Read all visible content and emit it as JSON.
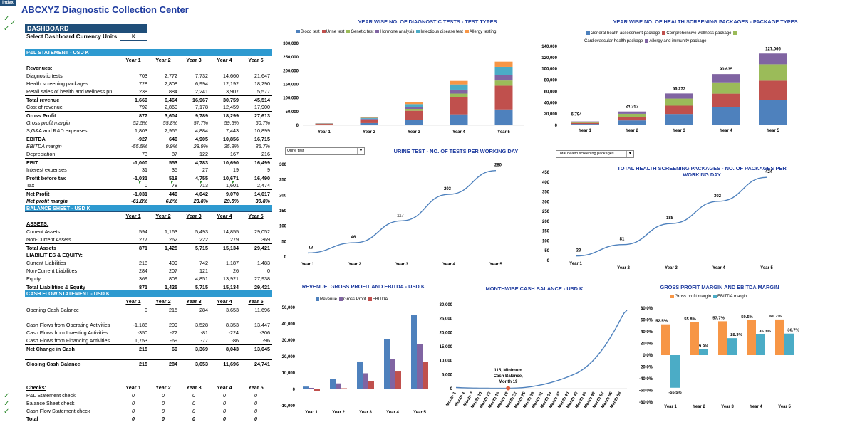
{
  "index_label": "Index",
  "title": "ABCXYZ Diagnostic Collection Center",
  "dashboard": {
    "header": "DASHBOARD",
    "currency_label": "Select Dashboard Currency Units",
    "currency_value": "K"
  },
  "years": [
    "Year 1",
    "Year 2",
    "Year 3",
    "Year 4",
    "Year 5"
  ],
  "pl": {
    "header": "P&L STATEMENT - USD K",
    "rows": [
      {
        "label": "Revenues:",
        "values": [
          "",
          "",
          "",
          "",
          ""
        ],
        "style": "b"
      },
      {
        "label": "Diagnostic tests",
        "values": [
          "703",
          "2,772",
          "7,732",
          "14,660",
          "21,647"
        ]
      },
      {
        "label": "Health screening packages",
        "values": [
          "728",
          "2,808",
          "6,994",
          "12,192",
          "18,290"
        ]
      },
      {
        "label": "Retail sales of health and wellness proc",
        "values": [
          "238",
          "884",
          "2,241",
          "3,907",
          "5,577"
        ]
      },
      {
        "label": "Total revenue",
        "values": [
          "1,669",
          "6,464",
          "16,967",
          "30,759",
          "45,514"
        ],
        "style": "b"
      },
      {
        "label": "Cost of revenue",
        "values": [
          "792",
          "2,860",
          "7,178",
          "12,459",
          "17,900"
        ]
      },
      {
        "label": "Gross Profit",
        "values": [
          "877",
          "3,604",
          "9,789",
          "18,299",
          "27,613"
        ],
        "style": "b"
      },
      {
        "label": "Gross profit margin",
        "values": [
          "52.5%",
          "55.8%",
          "57.7%",
          "59.5%",
          "60.7%"
        ],
        "style": "i"
      },
      {
        "label": "S,G&A and R&D expenses",
        "values": [
          "1,803",
          "2,965",
          "4,884",
          "7,443",
          "10,899"
        ]
      },
      {
        "label": "EBITDA",
        "values": [
          "-927",
          "640",
          "4,905",
          "10,856",
          "16,715"
        ],
        "style": "b"
      },
      {
        "label": "EBITDA margin",
        "values": [
          "-55.5%",
          "9.9%",
          "28.9%",
          "35.3%",
          "36.7%"
        ],
        "style": "i"
      },
      {
        "label": "Depreciation",
        "values": [
          "73",
          "87",
          "122",
          "167",
          "216"
        ]
      },
      {
        "label": "EBIT",
        "values": [
          "-1,000",
          "553",
          "4,783",
          "10,690",
          "16,499"
        ],
        "style": "b"
      },
      {
        "label": "Interest expenses",
        "values": [
          "31",
          "35",
          "27",
          "19",
          "9"
        ]
      },
      {
        "label": "Profit before tax",
        "values": [
          "-1,031",
          "518",
          "4,755",
          "10,671",
          "16,490"
        ],
        "style": "b"
      },
      {
        "label": "Tax",
        "values": [
          "0",
          "78",
          "713",
          "1,601",
          "2,474"
        ]
      },
      {
        "label": "Net Profit",
        "values": [
          "-1,031",
          "440",
          "4,042",
          "9,070",
          "14,017"
        ],
        "style": "b"
      },
      {
        "label": "Net profit margin",
        "values": [
          "-61.8%",
          "6.8%",
          "23.8%",
          "29.5%",
          "30.8%"
        ],
        "style": "bi"
      }
    ]
  },
  "bs": {
    "header": "BALANCE SHEET - USD K",
    "rows": [
      {
        "label": "ASSETS:",
        "values": [
          "",
          "",
          "",
          "",
          ""
        ],
        "style": "bu"
      },
      {
        "label": "Current Assets",
        "values": [
          "594",
          "1,163",
          "5,493",
          "14,855",
          "29,052"
        ]
      },
      {
        "label": "Non-Current Assets",
        "values": [
          "277",
          "262",
          "222",
          "279",
          "369"
        ]
      },
      {
        "label": "Total Assets",
        "values": [
          "871",
          "1,425",
          "5,715",
          "15,134",
          "29,421"
        ],
        "style": "b"
      },
      {
        "label": "LIABILITIES & EQUITY:",
        "values": [
          "",
          "",
          "",
          "",
          ""
        ],
        "style": "bu"
      },
      {
        "label": "Current Liabilities",
        "values": [
          "218",
          "409",
          "742",
          "1,187",
          "1,483"
        ]
      },
      {
        "label": "Non-Current Liabilities",
        "values": [
          "284",
          "207",
          "121",
          "26",
          "0"
        ]
      },
      {
        "label": "Equity",
        "values": [
          "369",
          "809",
          "4,851",
          "13,921",
          "27,938"
        ]
      },
      {
        "label": "Total Liabilities & Equity",
        "values": [
          "871",
          "1,425",
          "5,715",
          "15,134",
          "29,421"
        ],
        "style": "b"
      }
    ]
  },
  "cf": {
    "header": "CASH FLOW STATEMENT - USD K",
    "opening": {
      "label": "Opening Cash Balance",
      "values": [
        "0",
        "215",
        "284",
        "3,653",
        "11,696"
      ]
    },
    "rows": [
      {
        "label": "Cash Flows from Operating Activities",
        "values": [
          "-1,188",
          "209",
          "3,528",
          "8,353",
          "13,447"
        ]
      },
      {
        "label": "Cash Flows from Investing Activities",
        "values": [
          "-350",
          "-72",
          "-81",
          "-224",
          "-306"
        ]
      },
      {
        "label": "Cash Flows from Financing Activities",
        "values": [
          "1,753",
          "-69",
          "-77",
          "-86",
          "-96"
        ]
      },
      {
        "label": "Net Change in Cash",
        "values": [
          "215",
          "69",
          "3,369",
          "8,043",
          "13,045"
        ],
        "style": "b"
      }
    ],
    "closing": {
      "label": "Closing Cash Balance",
      "values": [
        "215",
        "284",
        "3,653",
        "11,696",
        "24,741"
      ]
    }
  },
  "checks": {
    "header": "Checks:",
    "rows": [
      {
        "label": "P&L Statement check",
        "values": [
          "0",
          "0",
          "0",
          "0",
          "0"
        ]
      },
      {
        "label": "Balance Sheet check",
        "values": [
          "0",
          "0",
          "0",
          "0",
          "0"
        ]
      },
      {
        "label": "Cash Flow Statement check",
        "values": [
          "0",
          "0",
          "0",
          "0",
          "0"
        ]
      },
      {
        "label": "Total",
        "values": [
          "0",
          "0",
          "0",
          "0",
          "0"
        ]
      }
    ]
  },
  "dropdowns": {
    "urine": "Urine test",
    "package": "Total health screening packages"
  },
  "colors": {
    "blue": "#4e81bd",
    "red": "#c0504d",
    "green": "#9bbb59",
    "purple": "#8064a2",
    "teal": "#4bacc6",
    "orange": "#f79646",
    "dark_blue": "#1f4e79",
    "section": "#2e9ad0",
    "line": "#4e81bd",
    "check": "#2e8b2e"
  },
  "chart_data": [
    {
      "type": "bar",
      "title": "YEAR WISE NO. OF DIAGNOSTIC TESTS - TEST TYPES",
      "stacked": true,
      "categories": [
        "Year 1",
        "Year 2",
        "Year 3",
        "Year 4",
        "Year 5"
      ],
      "series": [
        {
          "name": "Blood test",
          "values": [
            2000,
            8000,
            20000,
            40000,
            58000
          ]
        },
        {
          "name": "Urine test",
          "values": [
            3000,
            11000,
            33000,
            63000,
            87000
          ]
        },
        {
          "name": "Genetic test",
          "values": [
            600,
            2300,
            7000,
            13000,
            19000
          ]
        },
        {
          "name": "Hormone analysis",
          "values": [
            700,
            2600,
            7500,
            14500,
            21000
          ]
        },
        {
          "name": "Infectious disease test",
          "values": [
            900,
            3300,
            10000,
            19000,
            29000
          ]
        },
        {
          "name": "Allergy testing",
          "values": [
            600,
            2300,
            7000,
            13000,
            19000
          ]
        }
      ],
      "ylim": [
        0,
        300000
      ],
      "yticks": [
        "0",
        "50,000",
        "100,000",
        "150,000",
        "200,000",
        "250,000",
        "300,000"
      ]
    },
    {
      "type": "bar",
      "title": "YEAR WISE NO. OF HEALTH SCREENING PACKAGES - PACKAGE TYPES",
      "stacked": true,
      "categories": [
        "Year 1",
        "Year 2",
        "Year 3",
        "Year 4",
        "Year 5"
      ],
      "series": [
        {
          "name": "General health assessment package",
          "values": [
            2400,
            8600,
            20000,
            32000,
            45000
          ]
        },
        {
          "name": "Comprehensive wellness package",
          "values": [
            1800,
            6400,
            14700,
            24000,
            34000
          ]
        },
        {
          "name": "Cardiovascular health package",
          "values": [
            1500,
            5300,
            12500,
            20000,
            29000
          ]
        },
        {
          "name": "Allergy and immunity package",
          "values": [
            1094,
            4053,
            9073,
            14635,
            19066
          ]
        }
      ],
      "totals": [
        "6,794",
        "24,353",
        "56,273",
        "90,635",
        "127,066"
      ],
      "ylim": [
        0,
        140000
      ],
      "yticks": [
        "0",
        "20,000",
        "40,000",
        "60,000",
        "80,000",
        "100,000",
        "120,000",
        "140,000"
      ]
    },
    {
      "type": "line",
      "title": "URINE TEST -  NO. OF TESTS PER WORKING DAY",
      "categories": [
        "Year 1",
        "Year 2",
        "Year 3",
        "Year 4",
        "Year 5"
      ],
      "values": [
        13,
        46,
        117,
        203,
        280
      ],
      "ylim": [
        0,
        300
      ],
      "yticks": [
        "0",
        "50",
        "100",
        "150",
        "200",
        "250",
        "300"
      ]
    },
    {
      "type": "line",
      "title": "TOTAL HEALTH SCREENING PACKAGES -  NO. OF PACKAGES PER WORKING DAY",
      "categories": [
        "Year 1",
        "Year 2",
        "Year 3",
        "Year 4",
        "Year 5"
      ],
      "values": [
        23,
        81,
        188,
        302,
        424
      ],
      "ylim": [
        0,
        450
      ],
      "yticks": [
        "0",
        "50",
        "100",
        "150",
        "200",
        "250",
        "300",
        "350",
        "400",
        "450"
      ]
    },
    {
      "type": "bar",
      "title": "REVENUE, GROSS PROFIT AND EBITDA - USD K",
      "categories": [
        "Year 1",
        "Year 2",
        "Year 3",
        "Year 4",
        "Year 5"
      ],
      "series": [
        {
          "name": "Revenue",
          "values": [
            1669,
            6464,
            16967,
            30759,
            45514
          ]
        },
        {
          "name": "Gross Profit",
          "values": [
            877,
            3604,
            9789,
            18299,
            27613
          ]
        },
        {
          "name": "EBITDA",
          "values": [
            -927,
            640,
            4905,
            10856,
            16715
          ]
        }
      ],
      "ylim": [
        -10000,
        50000
      ],
      "yticks": [
        "-10,000",
        "0",
        "10,000",
        "20,000",
        "30,000",
        "40,000",
        "50,000"
      ]
    },
    {
      "type": "line",
      "title": "MONTHWISE CASH BALANCE - USD K",
      "values": [
        400,
        350,
        300,
        260,
        220,
        200,
        180,
        165,
        150,
        140,
        132,
        126,
        122,
        119,
        117,
        116,
        115,
        115,
        115,
        130,
        160,
        200,
        260,
        340,
        440,
        560,
        700,
        860,
        1040,
        1240,
        1460,
        1700,
        1960,
        2240,
        2540,
        2860,
        3200,
        3560,
        3940,
        4340,
        4760,
        5200,
        5700,
        6300,
        7000,
        7800,
        8700,
        9700,
        10800,
        12000,
        13300,
        14700,
        16200,
        17800,
        19500,
        21300,
        23200,
        25200,
        27000,
        28000
      ],
      "xticks": [
        "Month 1",
        "Month 4",
        "Month 7",
        "Month 10",
        "Month 13",
        "Month 16",
        "Month 19",
        "Month 22",
        "Month 25",
        "Month 28",
        "Month 31",
        "Month 34",
        "Month 37",
        "Month 40",
        "Month 43",
        "Month 46",
        "Month 49",
        "Month 52",
        "Month 55",
        "Month 58"
      ],
      "annotation": "115, Minimum Cash Balance, Month 19",
      "ylim": [
        0,
        30000
      ],
      "yticks": [
        "0",
        "5,000",
        "10,000",
        "15,000",
        "20,000",
        "25,000",
        "30,000"
      ]
    },
    {
      "type": "bar",
      "title": "GROSS PROFIT MARGIN AND  EBITDA MARGIN",
      "categories": [
        "Year 1",
        "Year 2",
        "Year 3",
        "Year 4",
        "Year 5"
      ],
      "series": [
        {
          "name": "Gross profit margin",
          "values": [
            52.5,
            55.8,
            57.7,
            59.5,
            60.7
          ],
          "labels": [
            "52.5%",
            "55.8%",
            "57.7%",
            "59.5%",
            "60.7%"
          ]
        },
        {
          "name": "EBITDA margin",
          "values": [
            -55.5,
            9.9,
            28.9,
            35.3,
            36.7
          ],
          "labels": [
            "-55.5%",
            "9.9%",
            "28.9%",
            "35.3%",
            "36.7%"
          ]
        }
      ],
      "ylim": [
        -80,
        80
      ],
      "yticks": [
        "-80.0%",
        "-60.0%",
        "-40.0%",
        "-20.0%",
        "0.0%",
        "20.0%",
        "40.0%",
        "60.0%",
        "80.0%"
      ]
    }
  ]
}
